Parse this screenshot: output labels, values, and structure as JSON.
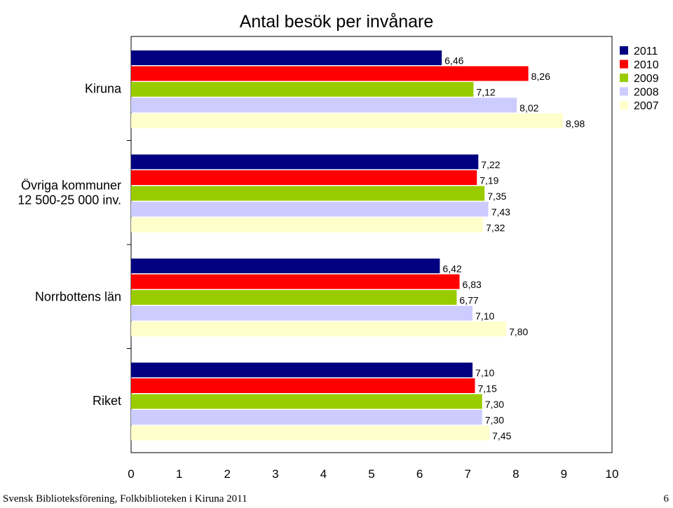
{
  "chart_data": {
    "type": "bar",
    "orientation": "horizontal",
    "title": "Antal besök per invånare",
    "categories": [
      "Kiruna",
      "Övriga kommuner 12 500-25 000 inv.",
      "Norrbottens län",
      "Riket"
    ],
    "category_lines": [
      [
        "Kiruna"
      ],
      [
        "Övriga kommuner",
        "12 500-25 000 inv."
      ],
      [
        "Norrbottens län"
      ],
      [
        "Riket"
      ]
    ],
    "series": [
      {
        "name": "2011",
        "color": "#000080",
        "values": [
          6.46,
          7.22,
          6.42,
          7.1
        ],
        "labels": [
          "6,46",
          "7,22",
          "6,42",
          "7,10"
        ]
      },
      {
        "name": "2010",
        "color": "#ff0000",
        "values": [
          8.26,
          7.19,
          6.83,
          7.15
        ],
        "labels": [
          "8,26",
          "7,19",
          "6,83",
          "7,15"
        ]
      },
      {
        "name": "2009",
        "color": "#99cc00",
        "values": [
          7.12,
          7.35,
          6.77,
          7.3
        ],
        "labels": [
          "7,12",
          "7,35",
          "6,77",
          "7,30"
        ]
      },
      {
        "name": "2008",
        "color": "#ccccff",
        "values": [
          8.02,
          7.43,
          7.1,
          7.3
        ],
        "labels": [
          "8,02",
          "7,43",
          "7,10",
          "7,30"
        ]
      },
      {
        "name": "2007",
        "color": "#ffffcc",
        "values": [
          8.98,
          7.32,
          7.8,
          7.45
        ],
        "labels": [
          "8,98",
          "7,32",
          "7,80",
          "7,45"
        ]
      }
    ],
    "xlim": [
      0,
      10
    ],
    "xticks": [
      "0",
      "1",
      "2",
      "3",
      "4",
      "5",
      "6",
      "7",
      "8",
      "9",
      "10"
    ],
    "grid": false,
    "legend_position": "top-right"
  },
  "footer": {
    "text": "Svensk Biblioteksförening, Folkbiblioteken i Kiruna 2011",
    "page_number": "6"
  }
}
